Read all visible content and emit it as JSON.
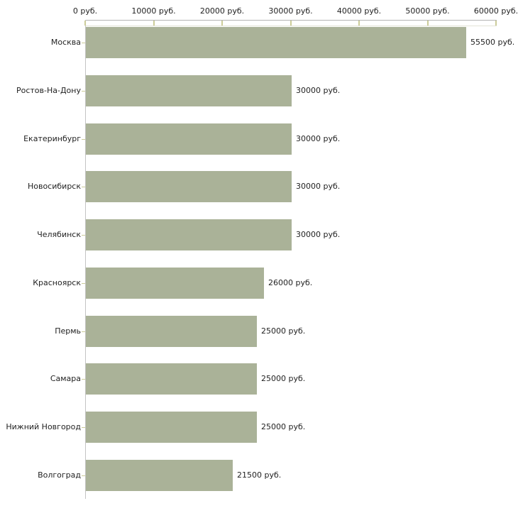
{
  "chart_data": {
    "type": "bar",
    "orientation": "horizontal",
    "title": "",
    "xlabel": "",
    "ylabel": "",
    "legend": false,
    "grid": false,
    "categories": [
      "Москва",
      "Ростов-На-Дону",
      "Екатеринбург",
      "Новосибирск",
      "Челябинск",
      "Красноярск",
      "Пермь",
      "Самара",
      "Нижний Новгород",
      "Волгоград"
    ],
    "values": [
      55500,
      30000,
      30000,
      30000,
      30000,
      26000,
      25000,
      25000,
      25000,
      21500
    ],
    "value_labels": [
      "55500 руб.",
      "30000 руб.",
      "30000 руб.",
      "30000 руб.",
      "30000 руб.",
      "26000 руб.",
      "25000 руб.",
      "25000 руб.",
      "25000 руб.",
      "21500 руб."
    ],
    "x_axis": {
      "position": "top",
      "range": [
        0,
        60000
      ],
      "ticks": [
        0,
        10000,
        20000,
        30000,
        40000,
        50000,
        60000
      ],
      "tick_labels": [
        "0 руб.",
        "10000 руб.",
        "20000 руб.",
        "30000 руб.",
        "40000 руб.",
        "50000 руб.",
        "60000 руб."
      ]
    },
    "colors": {
      "background": "#ffffff",
      "bar_fill": "#aab298",
      "axis_line": "#b3b3b3",
      "plot_border": "#e3e3d6",
      "tick_mark": "#cccc99",
      "y_axis_line": "#c3c3c3",
      "text": "#222222"
    }
  }
}
